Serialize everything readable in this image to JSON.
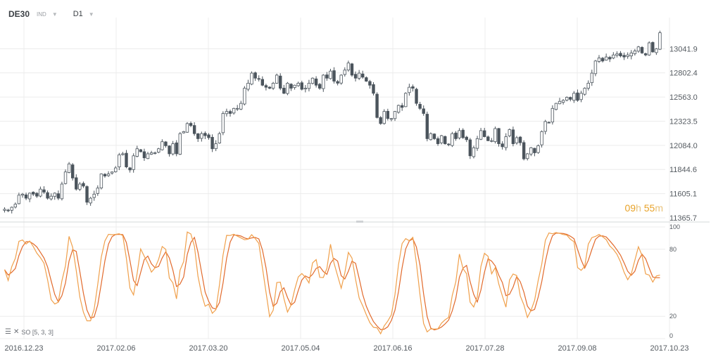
{
  "header": {
    "symbol": "DE30",
    "symbol_sub": "IND",
    "timeframe": "D1"
  },
  "timer": {
    "hours": "09",
    "h_unit": "h",
    "minutes": "55",
    "m_unit": "m"
  },
  "indicator_label": "SO [5, 3, 3]",
  "colors": {
    "candle": "#4b545c",
    "stoch_k": "#f0a04b",
    "stoch_d": "#e26a2c",
    "grid": "#ececec"
  },
  "chart_data": [
    {
      "type": "candlestick",
      "ylim": [
        11365.7,
        13281.0
      ],
      "ticks": [
        "13041.9",
        "12802.4",
        "12563.0",
        "12323.5",
        "12084.0",
        "11844.6",
        "11605.1",
        "11365.7"
      ],
      "x_ticks": [
        "2016.12.23",
        "2017.02.06",
        "2017.03.20",
        "2017.05.04",
        "2017.06.16",
        "2017.07.28",
        "2017.09.08",
        "2017.10.23"
      ],
      "close": [
        11450,
        11440,
        11470,
        11500,
        11590,
        11600,
        11560,
        11610,
        11600,
        11580,
        11650,
        11620,
        11560,
        11580,
        11610,
        11560,
        11700,
        11820,
        11900,
        11760,
        11650,
        11700,
        11680,
        11520,
        11560,
        11600,
        11660,
        11800,
        11780,
        11800,
        11820,
        11860,
        11990,
        12000,
        11870,
        11840,
        11980,
        12050,
        12020,
        11960,
        12000,
        12010,
        12010,
        12050,
        12120,
        12080,
        12000,
        12100,
        12000,
        12200,
        12220,
        12300,
        12280,
        12200,
        12150,
        12200,
        12180,
        12160,
        12050,
        12100,
        12200,
        12400,
        12420,
        12400,
        12450,
        12450,
        12500,
        12650,
        12700,
        12800,
        12750,
        12740,
        12680,
        12660,
        12650,
        12700,
        12780,
        12650,
        12600,
        12700,
        12650,
        12680,
        12700,
        12640,
        12650,
        12700,
        12750,
        12680,
        12650,
        12780,
        12750,
        12820,
        12720,
        12700,
        12780,
        12830,
        12900,
        12780,
        12750,
        12800,
        12760,
        12720,
        12680,
        12600,
        12360,
        12300,
        12420,
        12350,
        12350,
        12420,
        12480,
        12460,
        12600,
        12660,
        12650,
        12500,
        12450,
        12400,
        12150,
        12200,
        12150,
        12100,
        12180,
        12100,
        12090,
        12200,
        12150,
        12230,
        12160,
        12140,
        11980,
        12060,
        12150,
        12230,
        12170,
        12130,
        12130,
        12250,
        12100,
        12070,
        12170,
        12240,
        12100,
        12160,
        12110,
        11950,
        12000,
        12060,
        12010,
        12080,
        12220,
        12320,
        12310,
        12450,
        12500,
        12520,
        12530,
        12560,
        12540,
        12600,
        12530,
        12600,
        12650,
        12700,
        12800,
        12920,
        12950,
        12920,
        12960,
        12940,
        12980,
        12990,
        12970,
        12960,
        12980,
        13000,
        13020,
        13060,
        13000,
        12980,
        13100,
        13010,
        13040,
        13200
      ],
      "range_min": 11365.7,
      "range_max": 13281.0
    },
    {
      "type": "line",
      "name": "SO [5, 3, 3]",
      "ylim": [
        0,
        100
      ],
      "ticks": [
        100,
        80,
        20,
        0
      ]
    }
  ]
}
